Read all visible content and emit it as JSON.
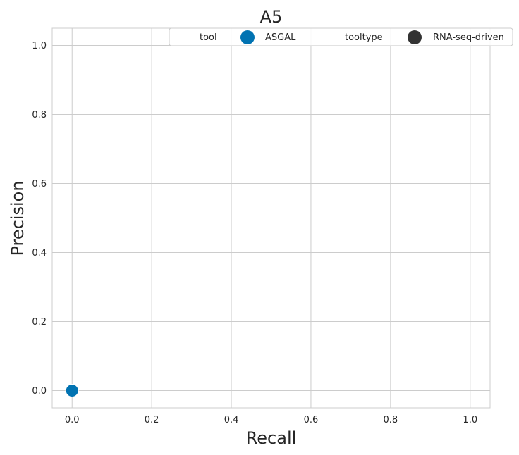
{
  "chart_data": {
    "type": "scatter",
    "title": "A5",
    "xlabel": "Recall",
    "ylabel": "Precision",
    "xlim": [
      -0.05,
      1.05
    ],
    "ylim": [
      -0.05,
      1.05
    ],
    "xticks": [
      0.0,
      0.2,
      0.4,
      0.6,
      0.8,
      1.0
    ],
    "yticks": [
      0.0,
      0.2,
      0.4,
      0.6,
      0.8,
      1.0
    ],
    "xtick_labels": [
      "0.0",
      "0.2",
      "0.4",
      "0.6",
      "0.8",
      "1.0"
    ],
    "ytick_labels": [
      "0.0",
      "0.2",
      "0.4",
      "0.6",
      "0.8",
      "1.0"
    ],
    "grid": true,
    "legend_placement": "top-right",
    "legend": {
      "tool_header": "tool",
      "tools": [
        {
          "name": "ASGAL",
          "color": "#0173b2"
        }
      ],
      "tooltype_header": "tooltype",
      "tooltypes": [
        {
          "name": "RNA-seq-driven",
          "color": "#333333"
        }
      ]
    },
    "series": [
      {
        "name": "ASGAL",
        "color": "#0173b2",
        "points": [
          {
            "x": 0.0,
            "y": 0.0
          }
        ]
      }
    ]
  }
}
